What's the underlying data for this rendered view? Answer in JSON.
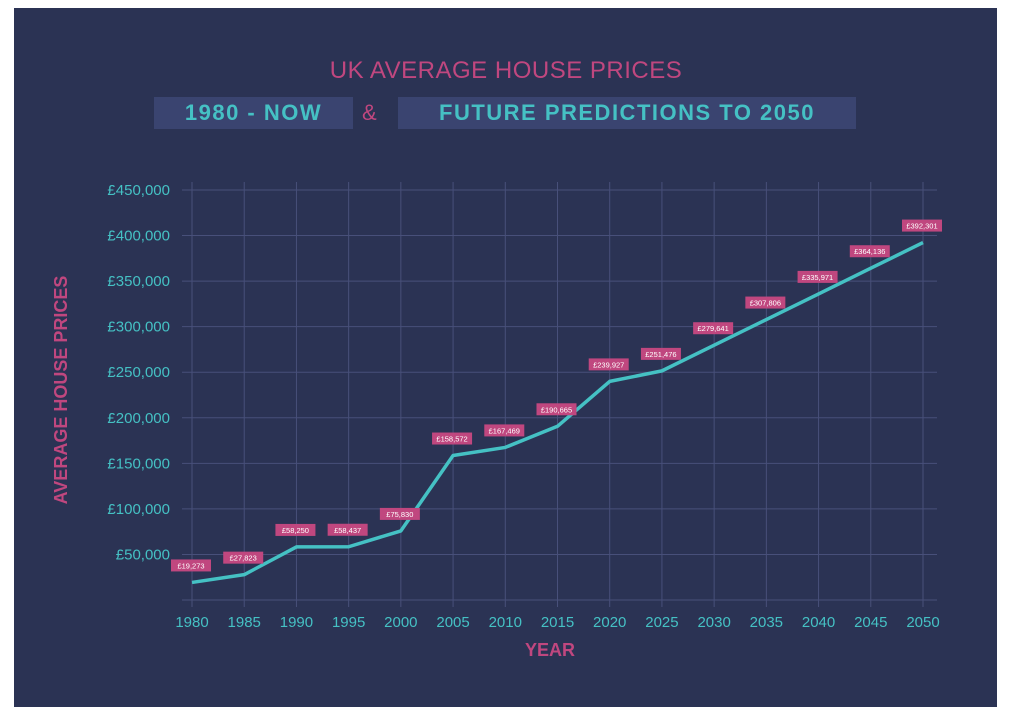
{
  "header": {
    "title": "UK AVERAGE HOUSE PRICES",
    "subtitle_left": "1980 - NOW",
    "ampersand": "&",
    "subtitle_right": "FUTURE PREDICTIONS TO 2050"
  },
  "colors": {
    "background": "#2b3354",
    "line": "#45c1c4",
    "label_bg": "#c0477f",
    "title": "#c0477f",
    "tick": "#45c1c4",
    "grid": "#48507a"
  },
  "chart_data": {
    "type": "line",
    "title": "UK AVERAGE HOUSE PRICES",
    "subtitle": "1980 - NOW & FUTURE PREDICTIONS TO 2050",
    "xlabel": "YEAR",
    "ylabel": "AVERAGE HOUSE PRICES",
    "x": [
      1980,
      1985,
      1990,
      1995,
      2000,
      2005,
      2010,
      2015,
      2020,
      2025,
      2030,
      2035,
      2040,
      2045,
      2050
    ],
    "values": [
      19273,
      27823,
      58250,
      58437,
      75830,
      158572,
      167469,
      190665,
      239927,
      251476,
      279641,
      307806,
      335971,
      364136,
      392301
    ],
    "data_labels": [
      "£19,273",
      "£27,823",
      "£58,250",
      "£58,437",
      "£75,830",
      "£158,572",
      "£167,469",
      "£190,665",
      "£239,927",
      "£251,476",
      "£279,641",
      "£307,806",
      "£335,971",
      "£364,136",
      "£392,301"
    ],
    "x_ticks": [
      "1980",
      "1985",
      "1990",
      "1995",
      "2000",
      "2005",
      "2010",
      "2015",
      "2020",
      "2025",
      "2030",
      "2035",
      "2040",
      "2045",
      "2050"
    ],
    "y_ticks": [
      50000,
      100000,
      150000,
      200000,
      250000,
      300000,
      350000,
      400000,
      450000
    ],
    "y_tick_labels": [
      "£50,000",
      "£100,000",
      "£150,000",
      "£200,000",
      "£250,000",
      "£300,000",
      "£350,000",
      "£400,000",
      "£450,000"
    ],
    "xlim": [
      1980,
      2050
    ],
    "ylim": [
      0,
      450000
    ],
    "grid": true,
    "legend": "none"
  }
}
